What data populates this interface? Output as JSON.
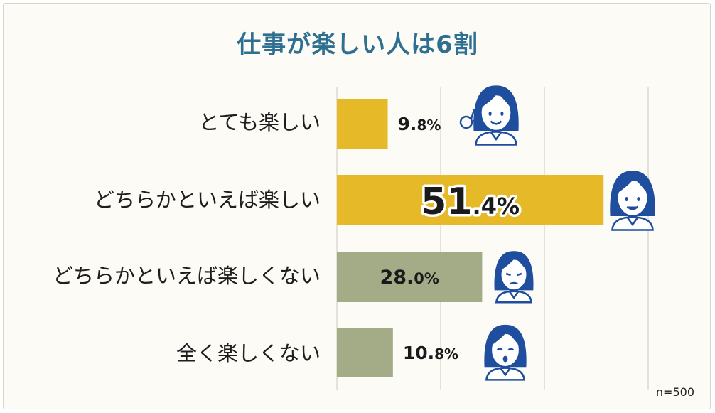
{
  "chart_data": {
    "type": "bar",
    "orientation": "horizontal",
    "title": "仕事が楽しい人は6割",
    "categories": [
      "とても楽しい",
      "どちらかといえば楽しい",
      "どちらかといえば楽しくない",
      "全く楽しくない"
    ],
    "values": [
      9.8,
      51.4,
      28.0,
      10.8
    ],
    "data_labels": [
      {
        "int": "9.",
        "dec": "8%"
      },
      {
        "int": "51",
        "dec": ".4%"
      },
      {
        "int": "28.",
        "dec": "0%"
      },
      {
        "int": "10.",
        "dec": "8%"
      }
    ],
    "bar_colors": [
      "#e6b929",
      "#e6b929",
      "#a3ab87",
      "#a3ab87"
    ],
    "xlim": [
      0,
      60
    ],
    "grid": true,
    "note": "n=500"
  },
  "colors": {
    "title": "#2e6f92",
    "positive": "#e6b929",
    "negative": "#a3ab87",
    "grid": "#d8d5cc",
    "figure": "#1f4e9e"
  },
  "icons": [
    "ok-sign-woman-icon",
    "smiling-woman-icon",
    "troubled-woman-icon",
    "shocked-woman-icon"
  ]
}
